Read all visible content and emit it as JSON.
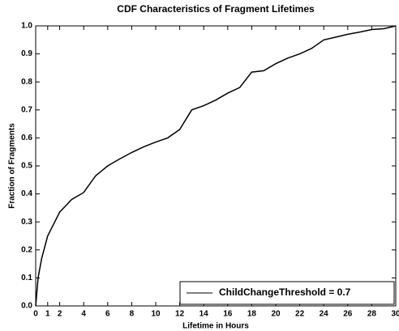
{
  "chart_data": {
    "type": "line",
    "title": "CDF Characteristics of Fragment Lifetimes",
    "xlabel": "Lifetime in Hours",
    "ylabel": "Fraction of Fragments",
    "x": [
      0,
      0.2,
      0.5,
      1,
      2,
      3,
      4,
      5,
      6,
      7,
      8,
      9,
      10,
      11,
      12,
      13,
      14,
      15,
      16,
      17,
      18,
      19,
      20,
      21,
      22,
      23,
      24,
      25,
      26,
      27,
      28,
      29,
      30
    ],
    "series": [
      {
        "name": "ChildChangeThreshold = 0.7",
        "color": "#000000",
        "values": [
          0,
          0.1,
          0.17,
          0.25,
          0.335,
          0.38,
          0.405,
          0.465,
          0.5,
          0.525,
          0.548,
          0.568,
          0.585,
          0.6,
          0.63,
          0.7,
          0.715,
          0.735,
          0.76,
          0.78,
          0.835,
          0.84,
          0.865,
          0.885,
          0.9,
          0.92,
          0.95,
          0.96,
          0.97,
          0.978,
          0.987,
          0.99,
          1.0
        ]
      }
    ],
    "xlim": [
      0,
      30
    ],
    "xticks": [
      0,
      1,
      2,
      4,
      6,
      8,
      10,
      12,
      14,
      16,
      18,
      20,
      22,
      24,
      26,
      28,
      30
    ],
    "ylim": [
      0,
      1
    ],
    "yticks": [
      {
        "value": 0,
        "label": "0.0"
      },
      0.1,
      0.2,
      0.3,
      0.4,
      0.5,
      0.6,
      0.7,
      0.8,
      0.9,
      {
        "value": 1,
        "label": "1.0"
      }
    ],
    "grid": false,
    "legend": "lower right"
  }
}
